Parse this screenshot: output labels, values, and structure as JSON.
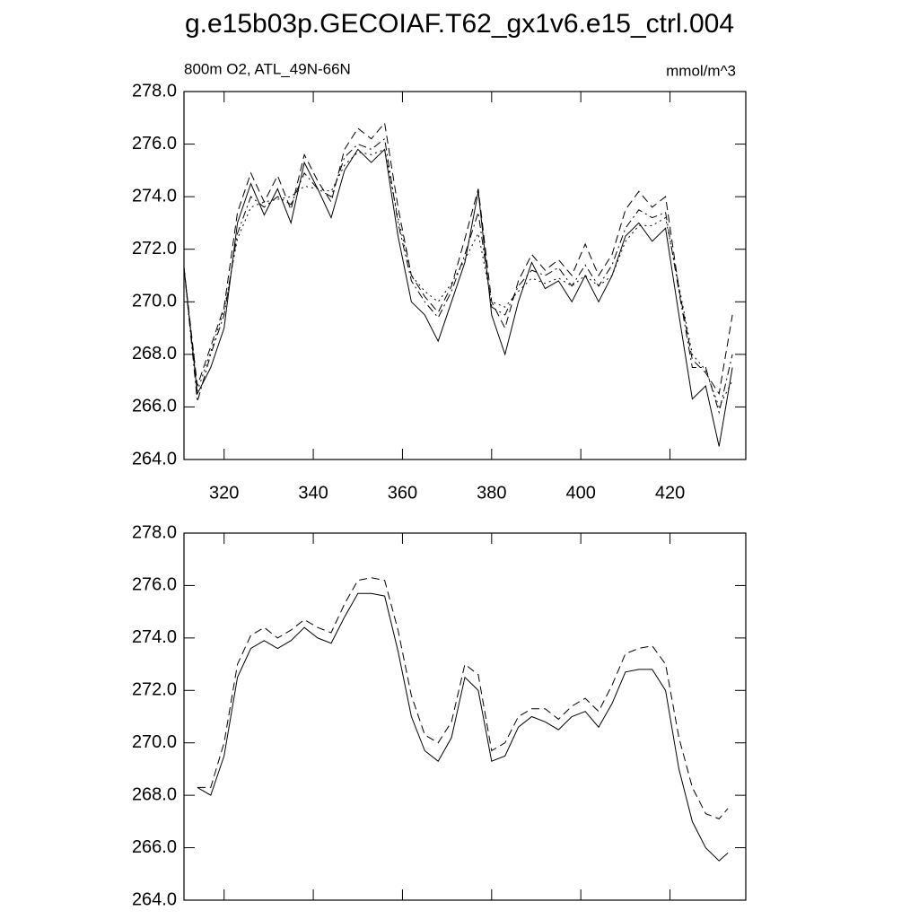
{
  "chart_data": [
    {
      "type": "line",
      "title": "g.e15b03p.GECOIAF.T62_gx1v6.e15_ctrl.004",
      "left_string": "800m O2, ATL_49N-66N",
      "right_string": "mmol/m^3",
      "x": [
        311,
        314,
        317,
        320,
        323,
        326,
        329,
        332,
        335,
        338,
        341,
        344,
        347,
        350,
        353,
        356,
        359,
        362,
        365,
        368,
        371,
        374,
        377,
        380,
        383,
        386,
        389,
        392,
        395,
        398,
        401,
        404,
        407,
        410,
        413,
        416,
        419,
        422,
        425,
        428,
        431,
        434
      ],
      "series": [
        {
          "name": "solid",
          "color": "#000000",
          "style": "solid",
          "values": [
            271.3,
            266.5,
            267.5,
            269.0,
            273.0,
            274.5,
            273.3,
            274.3,
            273.0,
            275.3,
            274.3,
            273.2,
            275.0,
            275.8,
            275.3,
            275.8,
            272.5,
            270.0,
            269.5,
            268.5,
            270.0,
            271.5,
            274.2,
            269.5,
            268.0,
            270.0,
            271.5,
            270.5,
            270.8,
            270.0,
            271.0,
            270.0,
            271.0,
            272.5,
            273.0,
            272.3,
            272.8,
            269.5,
            266.3,
            266.8,
            264.5,
            267.5
          ]
        },
        {
          "name": "dashed",
          "color": "#000000",
          "style": "dashed",
          "values": [
            271.3,
            266.8,
            268.3,
            269.8,
            273.4,
            274.9,
            273.8,
            274.8,
            273.5,
            275.6,
            274.6,
            273.8,
            275.8,
            276.6,
            276.2,
            276.8,
            273.6,
            271.0,
            270.2,
            269.6,
            270.6,
            272.4,
            274.3,
            270.0,
            269.0,
            270.8,
            271.8,
            271.2,
            271.6,
            271.0,
            272.2,
            271.0,
            271.8,
            273.5,
            274.2,
            273.6,
            274.0,
            270.5,
            267.8,
            267.3,
            266.5,
            269.5
          ]
        },
        {
          "name": "dashdot",
          "color": "#000000",
          "style": "dashdot",
          "values": [
            271.3,
            266.2,
            268.0,
            269.5,
            272.6,
            274.0,
            273.6,
            274.0,
            273.7,
            274.9,
            274.3,
            274.0,
            275.5,
            276.0,
            275.8,
            276.2,
            273.0,
            270.8,
            270.0,
            269.4,
            270.4,
            271.8,
            273.4,
            269.8,
            269.5,
            270.6,
            271.2,
            271.0,
            271.3,
            270.6,
            271.4,
            270.6,
            271.4,
            272.8,
            273.5,
            273.2,
            273.4,
            270.4,
            267.5,
            267.5,
            265.8,
            268.0
          ]
        },
        {
          "name": "dotted",
          "color": "#000000",
          "style": "dotted",
          "values": [
            271.3,
            266.6,
            268.1,
            269.7,
            272.4,
            273.6,
            273.8,
            273.9,
            274.0,
            274.4,
            274.3,
            274.2,
            275.2,
            275.7,
            275.6,
            275.8,
            273.2,
            271.0,
            270.4,
            270.0,
            270.7,
            271.6,
            272.6,
            270.0,
            269.8,
            270.4,
            270.9,
            270.7,
            270.9,
            270.6,
            271.0,
            270.6,
            271.0,
            272.3,
            272.9,
            272.9,
            273.2,
            270.6,
            268.0,
            267.4,
            266.0,
            267.0
          ]
        }
      ],
      "xlim": [
        311,
        437
      ],
      "xticks": [
        320,
        340,
        360,
        380,
        400,
        420
      ],
      "ylim": [
        264,
        278
      ],
      "yticks": [
        {
          "value": 264,
          "label": "264.0"
        },
        {
          "value": 266,
          "label": "266.0"
        },
        {
          "value": 268,
          "label": "268.0"
        },
        {
          "value": 270,
          "label": "270.0"
        },
        {
          "value": 272,
          "label": "272.0"
        },
        {
          "value": 274,
          "label": "274.0"
        },
        {
          "value": 276,
          "label": "276.0"
        },
        {
          "value": 278,
          "label": "278.0"
        }
      ],
      "xticklabels": true
    },
    {
      "type": "line",
      "x": [
        314,
        317,
        320,
        323,
        326,
        329,
        332,
        335,
        338,
        341,
        344,
        347,
        350,
        353,
        356,
        359,
        362,
        365,
        368,
        371,
        374,
        377,
        380,
        383,
        386,
        389,
        392,
        395,
        398,
        401,
        404,
        407,
        410,
        413,
        416,
        419,
        422,
        425,
        428,
        431,
        433
      ],
      "series": [
        {
          "name": "solid",
          "color": "#000000",
          "style": "solid",
          "values": [
            268.3,
            268.0,
            269.5,
            272.5,
            273.6,
            273.9,
            273.6,
            273.9,
            274.4,
            274.0,
            273.8,
            274.8,
            275.7,
            275.7,
            275.6,
            273.5,
            271.0,
            269.7,
            269.3,
            270.2,
            272.5,
            272.0,
            269.3,
            269.5,
            270.6,
            271.0,
            270.8,
            270.5,
            271.0,
            271.2,
            270.6,
            271.5,
            272.7,
            272.8,
            272.8,
            272.0,
            269.0,
            267.0,
            266.0,
            265.5,
            265.8
          ]
        },
        {
          "name": "dashed",
          "color": "#000000",
          "style": "dashed",
          "values": [
            268.3,
            268.3,
            270.0,
            273.0,
            274.1,
            274.4,
            274.0,
            274.3,
            274.7,
            274.4,
            274.2,
            275.3,
            276.2,
            276.3,
            276.2,
            274.3,
            271.8,
            270.3,
            270.0,
            270.8,
            273.0,
            272.6,
            269.7,
            270.0,
            271.0,
            271.3,
            271.3,
            270.9,
            271.4,
            271.7,
            271.2,
            272.2,
            273.4,
            273.6,
            273.7,
            273.0,
            270.2,
            268.3,
            267.3,
            267.1,
            267.5
          ]
        }
      ],
      "xlim": [
        311,
        437
      ],
      "xticks": [
        320,
        340,
        360,
        380,
        400,
        420
      ],
      "ylim": [
        264,
        278
      ],
      "yticks": [
        {
          "value": 264,
          "label": "264.0"
        },
        {
          "value": 266,
          "label": "266.0"
        },
        {
          "value": 268,
          "label": "268.0"
        },
        {
          "value": 270,
          "label": "270.0"
        },
        {
          "value": 272,
          "label": "272.0"
        },
        {
          "value": 274,
          "label": "274.0"
        },
        {
          "value": 276,
          "label": "276.0"
        },
        {
          "value": 278,
          "label": "278.0"
        }
      ],
      "xticklabels": false
    }
  ]
}
